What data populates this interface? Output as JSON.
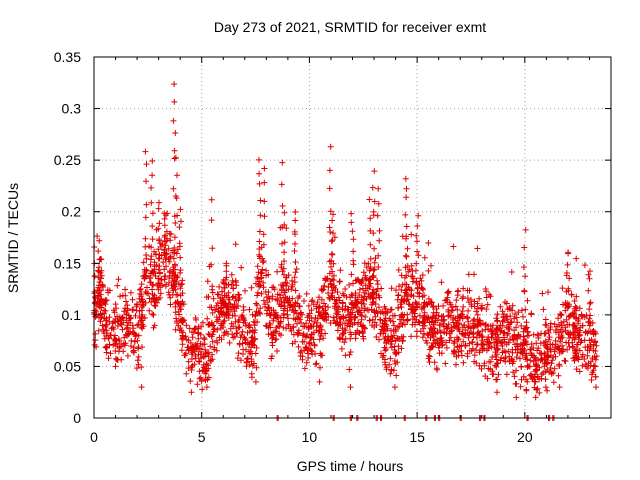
{
  "chart_data": {
    "type": "scatter",
    "title": "Day 273 of 2021, SRMTID for receiver exmt",
    "xlabel": "GPS time / hours",
    "ylabel": "SRMTID / TECUs",
    "xlim": [
      0,
      24
    ],
    "ylim": [
      0,
      0.35
    ],
    "x_ticks": [
      0,
      5,
      10,
      15,
      20
    ],
    "x_tick_labels": [
      "0",
      "5",
      "10",
      "15",
      "20"
    ],
    "y_ticks": [
      0,
      0.05,
      0.1,
      0.15,
      0.2,
      0.25,
      0.3,
      0.35
    ],
    "y_tick_labels": [
      "0",
      "0.05",
      "0.1",
      "0.15",
      "0.2",
      "0.25",
      "0.3",
      "0.35"
    ],
    "grid": true,
    "marker": "plus",
    "color": "#e00000",
    "trend": [
      [
        0,
        0.1
      ],
      [
        0.3,
        0.12
      ],
      [
        0.6,
        0.09
      ],
      [
        1,
        0.08
      ],
      [
        1.5,
        0.09
      ],
      [
        2,
        0.075
      ],
      [
        2.4,
        0.14
      ],
      [
        2.8,
        0.12
      ],
      [
        3.2,
        0.15
      ],
      [
        3.7,
        0.13
      ],
      [
        4,
        0.11
      ],
      [
        4.3,
        0.07
      ],
      [
        4.8,
        0.065
      ],
      [
        5.2,
        0.06
      ],
      [
        5.6,
        0.09
      ],
      [
        6,
        0.11
      ],
      [
        6.6,
        0.1
      ],
      [
        7,
        0.075
      ],
      [
        7.4,
        0.07
      ],
      [
        7.8,
        0.15
      ],
      [
        8.2,
        0.09
      ],
      [
        8.6,
        0.1
      ],
      [
        9,
        0.12
      ],
      [
        9.5,
        0.09
      ],
      [
        10,
        0.08
      ],
      [
        10.5,
        0.09
      ],
      [
        11,
        0.13
      ],
      [
        11.5,
        0.09
      ],
      [
        12,
        0.1
      ],
      [
        12.5,
        0.11
      ],
      [
        13,
        0.12
      ],
      [
        13.5,
        0.08
      ],
      [
        14,
        0.075
      ],
      [
        14.5,
        0.12
      ],
      [
        15,
        0.11
      ],
      [
        15.5,
        0.09
      ],
      [
        16,
        0.08
      ],
      [
        16.5,
        0.09
      ],
      [
        17,
        0.085
      ],
      [
        17.5,
        0.09
      ],
      [
        18,
        0.08
      ],
      [
        18.5,
        0.07
      ],
      [
        19,
        0.08
      ],
      [
        19.5,
        0.075
      ],
      [
        20,
        0.06
      ],
      [
        20.5,
        0.05
      ],
      [
        21,
        0.06
      ],
      [
        21.5,
        0.07
      ],
      [
        22,
        0.09
      ],
      [
        22.5,
        0.08
      ],
      [
        23,
        0.075
      ],
      [
        23.3,
        0.07
      ]
    ],
    "peaks": [
      [
        0.2,
        0.18
      ],
      [
        0.3,
        0.15
      ],
      [
        2.4,
        0.26
      ],
      [
        2.7,
        0.25
      ],
      [
        3.0,
        0.21
      ],
      [
        3.3,
        0.2
      ],
      [
        3.7,
        0.32
      ],
      [
        3.75,
        0.31
      ],
      [
        3.8,
        0.25
      ],
      [
        4.0,
        0.2
      ],
      [
        5.5,
        0.21
      ],
      [
        6.1,
        0.15
      ],
      [
        7.7,
        0.25
      ],
      [
        7.9,
        0.24
      ],
      [
        8.7,
        0.25
      ],
      [
        8.8,
        0.2
      ],
      [
        9.3,
        0.2
      ],
      [
        11.0,
        0.265
      ],
      [
        11.1,
        0.2
      ],
      [
        12.0,
        0.2
      ],
      [
        12.8,
        0.21
      ],
      [
        13.0,
        0.24
      ],
      [
        13.2,
        0.22
      ],
      [
        14.5,
        0.235
      ],
      [
        15.0,
        0.2
      ],
      [
        20.0,
        0.18
      ],
      [
        22.0,
        0.16
      ],
      [
        23.0,
        0.14
      ]
    ],
    "lows": [
      [
        1.0,
        0.05
      ],
      [
        2.2,
        0.03
      ],
      [
        4.5,
        0.025
      ],
      [
        5.2,
        0.03
      ],
      [
        7.5,
        0.035
      ],
      [
        10.5,
        0.035
      ],
      [
        11.9,
        0.03
      ],
      [
        14.0,
        0.03
      ],
      [
        18.7,
        0.025
      ],
      [
        19.6,
        0.02
      ],
      [
        20.5,
        0.02
      ],
      [
        21.0,
        0.03
      ],
      [
        21.6,
        0.03
      ],
      [
        23.3,
        0.03
      ]
    ],
    "zero_points": [
      8.5,
      11.1,
      11.9,
      12.2,
      13.1,
      13.3,
      14.4,
      15.4,
      15.8,
      16.0,
      17.0,
      17.9,
      18.1,
      20.1,
      21.1,
      21.3
    ],
    "noise_amplitude": 0.025,
    "approx_points_per_hour": 100
  }
}
